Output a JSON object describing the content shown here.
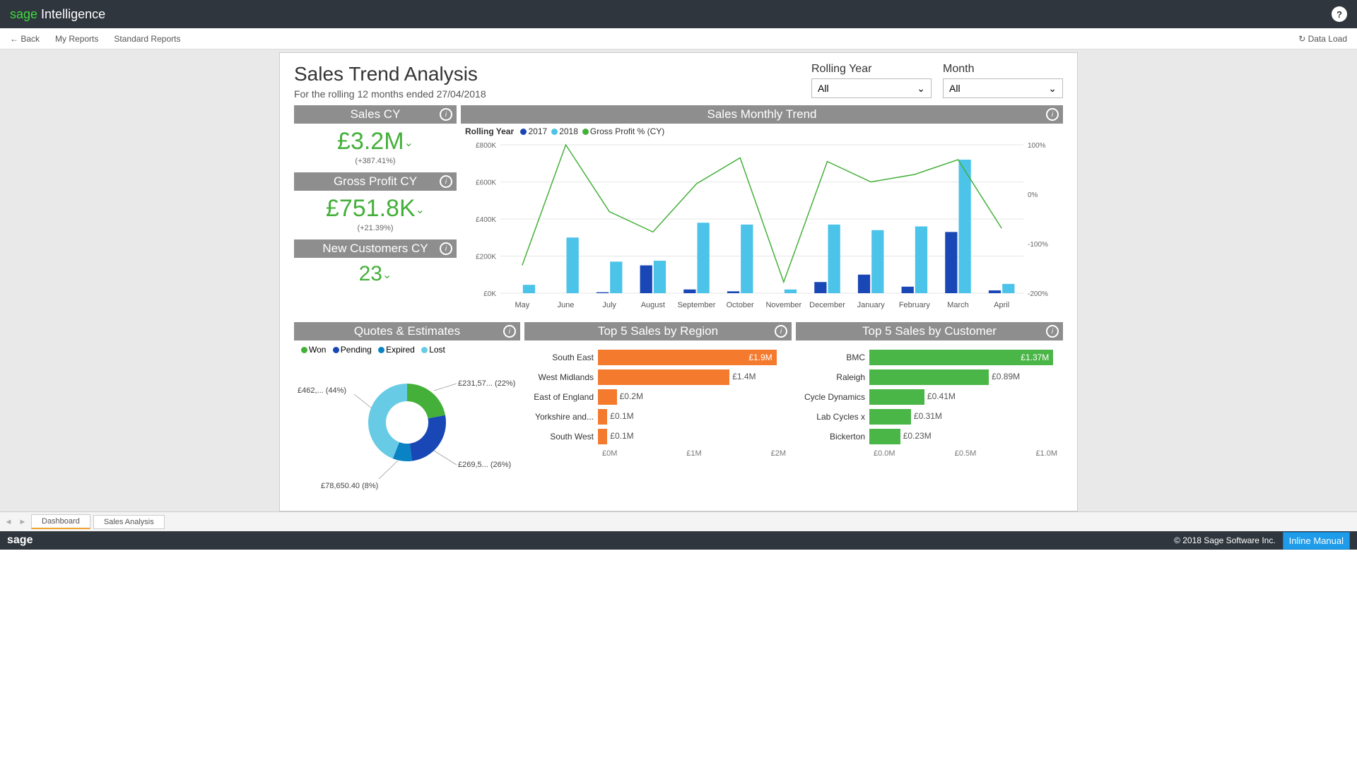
{
  "header": {
    "brand_sage": "sage",
    "brand_intel": " Intelligence",
    "help": "?"
  },
  "nav": {
    "back": "Back",
    "my_reports": "My Reports",
    "standard_reports": "Standard Reports",
    "data_load": "Data Load"
  },
  "page": {
    "title": "Sales Trend Analysis",
    "subtitle": "For the rolling 12 months ended 27/04/2018"
  },
  "filters": {
    "rolling_year": {
      "label": "Rolling Year",
      "value": "All"
    },
    "month": {
      "label": "Month",
      "value": "All"
    }
  },
  "kpi": {
    "sales_cy": {
      "title": "Sales CY",
      "value": "£3.2M",
      "delta": "(+387.41%)"
    },
    "gp_cy": {
      "title": "Gross Profit CY",
      "value": "£751.8K",
      "delta": "(+21.39%)"
    },
    "new_cust": {
      "title": "New Customers CY",
      "value": "23"
    }
  },
  "trend": {
    "title": "Sales Monthly Trend",
    "legend_label": "Rolling Year",
    "series": [
      {
        "name": "2017",
        "color": "#1947b5"
      },
      {
        "name": "2018",
        "color": "#4cc3e8"
      },
      {
        "name": "Gross Profit % (CY)",
        "color": "#44b03a"
      }
    ],
    "months": [
      "May",
      "June",
      "July",
      "August",
      "September",
      "October",
      "November",
      "December",
      "January",
      "February",
      "March",
      "April"
    ],
    "y_ticks": [
      "£800K",
      "£600K",
      "£400K",
      "£200K",
      "£0K"
    ],
    "y_right": [
      "100%",
      "0%",
      "-100%",
      "-200%"
    ],
    "bars_2017": [
      0,
      0,
      5,
      150,
      20,
      10,
      0,
      60,
      100,
      35,
      330,
      15
    ],
    "bars_2018": [
      45,
      300,
      170,
      175,
      380,
      370,
      20,
      370,
      340,
      360,
      720,
      50
    ],
    "gp_line": [
      150,
      800,
      440,
      330,
      590,
      730,
      60,
      710,
      600,
      640,
      720,
      350
    ],
    "y_max": 800,
    "bar_color_2017": "#1947b5",
    "bar_color_2018": "#4cc3e8",
    "line_color": "#44b03a",
    "grid_color": "#e6e6e6",
    "background": "#ffffff"
  },
  "quotes": {
    "title": "Quotes & Estimates",
    "legend": [
      {
        "name": "Won",
        "color": "#44b03a"
      },
      {
        "name": "Pending",
        "color": "#1947b5"
      },
      {
        "name": "Expired",
        "color": "#0a83c4"
      },
      {
        "name": "Lost",
        "color": "#67cbe6"
      }
    ],
    "slices": [
      {
        "label": "£231,57... (22%)",
        "pct": 22,
        "color": "#44b03a"
      },
      {
        "label": "£269,5... (26%)",
        "pct": 26,
        "color": "#1947b5"
      },
      {
        "label": "£78,650.40 (8%)",
        "pct": 8,
        "color": "#0a83c4"
      },
      {
        "label": "£462,... (44%)",
        "pct": 44,
        "color": "#67cbe6"
      }
    ],
    "inner_label_top": "£462,... (44%)",
    "inner_label_right_top": "£231,57... (22%)",
    "inner_label_right_bot": "£269,5... (26%)",
    "inner_label_bot": "£78,650.40 (8%)"
  },
  "region": {
    "title": "Top 5 Sales by Region",
    "color": "#f47a2e",
    "max": 2.0,
    "rows": [
      {
        "label": "South East",
        "val": 1.9,
        "text": "£1.9M",
        "inside": true
      },
      {
        "label": "West Midlands",
        "val": 1.4,
        "text": "£1.4M",
        "inside": false
      },
      {
        "label": "East of England",
        "val": 0.2,
        "text": "£0.2M",
        "inside": false
      },
      {
        "label": "Yorkshire and...",
        "val": 0.1,
        "text": "£0.1M",
        "inside": false
      },
      {
        "label": "South West",
        "val": 0.1,
        "text": "£0.1M",
        "inside": false
      }
    ],
    "axis": [
      "£0M",
      "£1M",
      "£2M"
    ]
  },
  "customer": {
    "title": "Top 5 Sales by Customer",
    "color": "#4bb648",
    "max": 1.4,
    "rows": [
      {
        "label": "BMC",
        "val": 1.37,
        "text": "£1.37M",
        "inside": true
      },
      {
        "label": "Raleigh",
        "val": 0.89,
        "text": "£0.89M",
        "inside": false
      },
      {
        "label": "Cycle Dynamics",
        "val": 0.41,
        "text": "£0.41M",
        "inside": false
      },
      {
        "label": "Lab Cycles x",
        "val": 0.31,
        "text": "£0.31M",
        "inside": false
      },
      {
        "label": "Bickerton",
        "val": 0.23,
        "text": "£0.23M",
        "inside": false
      }
    ],
    "axis": [
      "£0.0M",
      "£0.5M",
      "£1.0M"
    ]
  },
  "tabs": {
    "dashboard": "Dashboard",
    "sales_analysis": "Sales Analysis"
  },
  "footer": {
    "sage": "sage",
    "copyright": "© 2018 Sage Software Inc.",
    "inline_manual": "Inline Manual"
  }
}
